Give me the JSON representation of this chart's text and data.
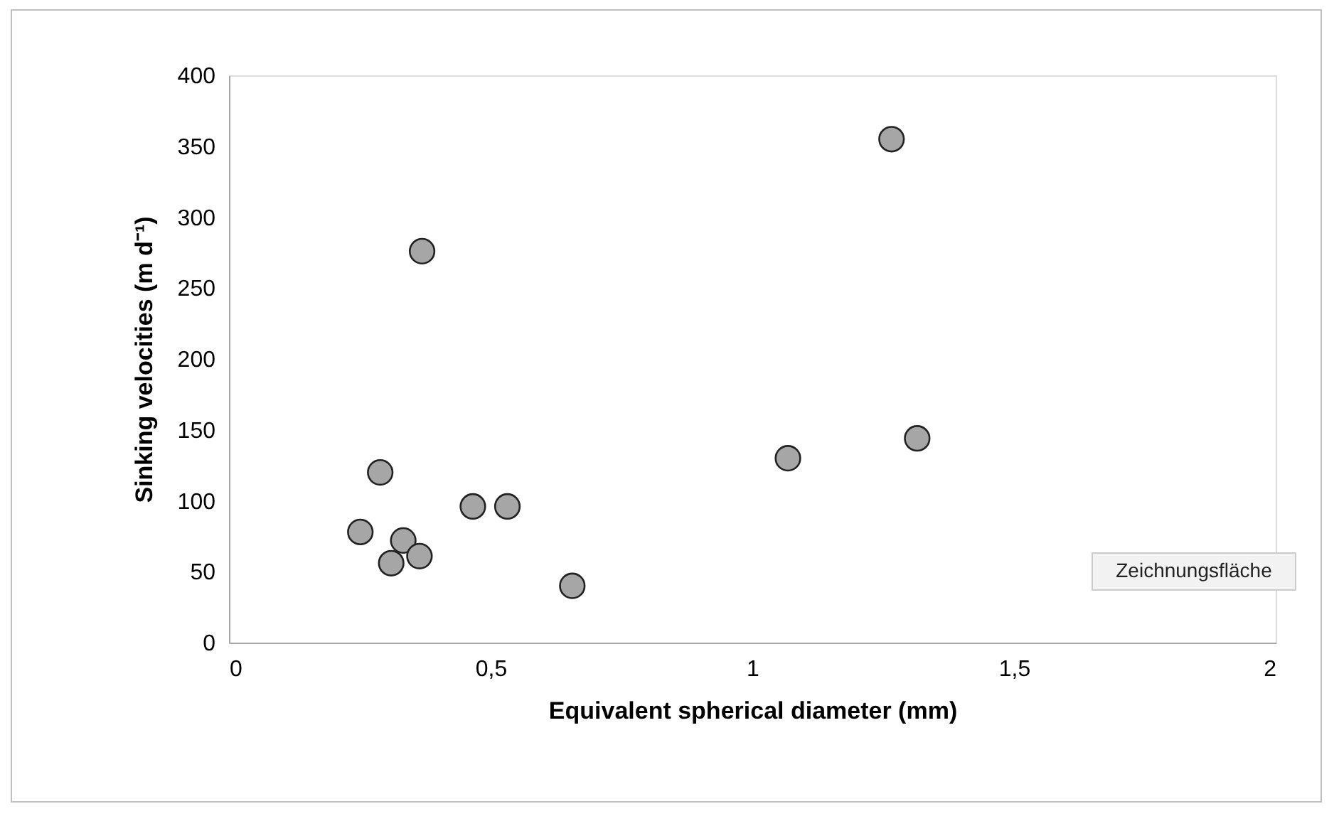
{
  "chart_data": {
    "type": "scatter",
    "xlabel": "Equivalent spherical diameter (mm)",
    "ylabel": "Sinking velocities (m d⁻¹)",
    "annotations": [
      "Zeichnungsfläche"
    ],
    "x": [
      0.369,
      0.289,
      0.466,
      0.532,
      0.251,
      0.333,
      0.364,
      0.31,
      0.656,
      1.266,
      1.068,
      1.315
    ],
    "series": [
      {
        "color": "#a6a6a6",
        "values": [
          276,
          120,
          96,
          96,
          78,
          72,
          61,
          56,
          40,
          355,
          130,
          144
        ]
      }
    ],
    "marker": "circle",
    "xlim": [
      0,
      2
    ],
    "xticks": [
      0,
      {
        "value": 0.5,
        "label": "0,5"
      },
      1,
      {
        "value": 1.5,
        "label": "1,5"
      },
      2
    ],
    "ylim": [
      0,
      400
    ],
    "yticks": [
      0,
      50,
      100,
      150,
      200,
      250,
      300,
      350,
      400
    ],
    "grid": false
  }
}
